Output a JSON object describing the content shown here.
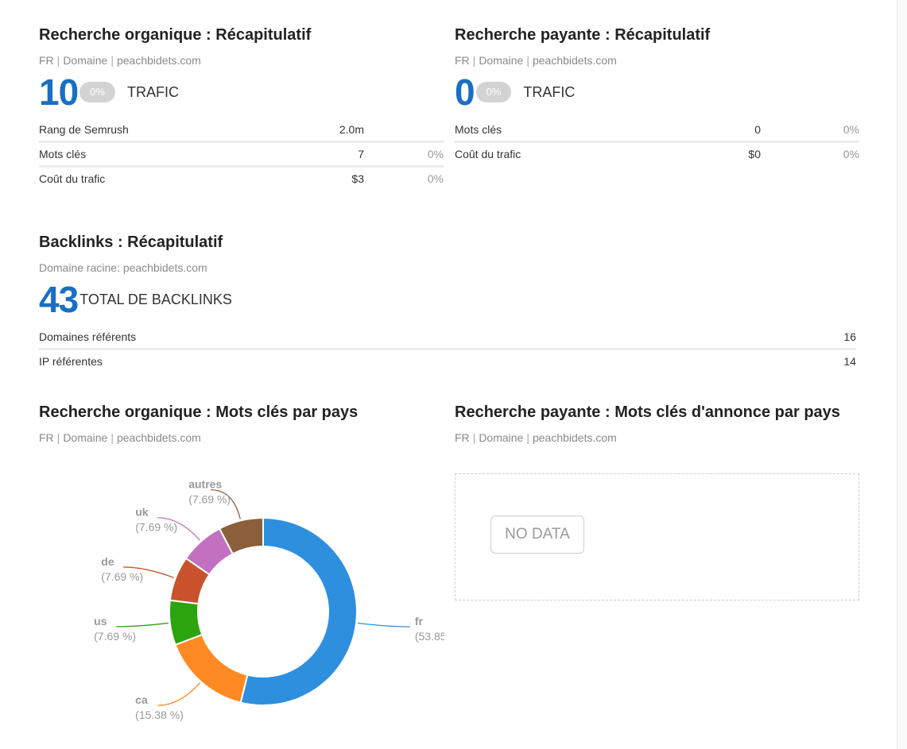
{
  "organic_summary": {
    "title": "Recherche organique : Récapitulatif",
    "db": "FR",
    "scope": "Domaine",
    "domain": "peachbidets.com",
    "big_value": "10",
    "pill": "0%",
    "big_label": "TRAFIC",
    "metrics": [
      {
        "label": "Rang de Semrush",
        "value": "2.0m",
        "pct": ""
      },
      {
        "label": "Mots clés",
        "value": "7",
        "pct": "0%"
      },
      {
        "label": "Coût du trafic",
        "value": "$3",
        "pct": "0%"
      }
    ]
  },
  "paid_summary": {
    "title": "Recherche payante : Récapitulatif",
    "db": "FR",
    "scope": "Domaine",
    "domain": "peachbidets.com",
    "big_value": "0",
    "pill": "0%",
    "big_label": "TRAFIC",
    "metrics": [
      {
        "label": "Mots clés",
        "value": "0",
        "pct": "0%"
      },
      {
        "label": "Coût du trafic",
        "value": "$0",
        "pct": "0%"
      }
    ]
  },
  "backlinks_summary": {
    "title": "Backlinks : Récapitulatif",
    "root_domain": "Domaine racine: peachbidets.com",
    "big_value": "43",
    "big_label": "TOTAL DE BACKLINKS",
    "metrics": [
      {
        "label": "Domaines référents",
        "value": "16"
      },
      {
        "label": "IP référentes",
        "value": "14"
      }
    ]
  },
  "organic_countries": {
    "title": "Recherche organique : Mots clés par pays",
    "db": "FR",
    "scope": "Domaine",
    "domain": "peachbidets.com"
  },
  "paid_countries": {
    "title": "Recherche payante : Mots clés d'annonce par pays",
    "db": "FR",
    "scope": "Domaine",
    "domain": "peachbidets.com",
    "no_data": "NO DATA"
  },
  "chart_data": {
    "type": "pie",
    "donut": true,
    "title": "",
    "series": [
      {
        "name": "fr",
        "value": 53.85,
        "label": "(53.85",
        "color": "#2e8fdf"
      },
      {
        "name": "ca",
        "value": 15.38,
        "label": "(15.38 %)",
        "color": "#ff8a24"
      },
      {
        "name": "us",
        "value": 7.69,
        "label": "(7.69 %)",
        "color": "#2ca40e"
      },
      {
        "name": "de",
        "value": 7.69,
        "label": "(7.69 %)",
        "color": "#c9522d"
      },
      {
        "name": "uk",
        "value": 7.69,
        "label": "(7.69 %)",
        "color": "#c271c0"
      },
      {
        "name": "autres",
        "value": 7.69,
        "label": "(7.69 %)",
        "color": "#8a5f3a"
      }
    ]
  }
}
